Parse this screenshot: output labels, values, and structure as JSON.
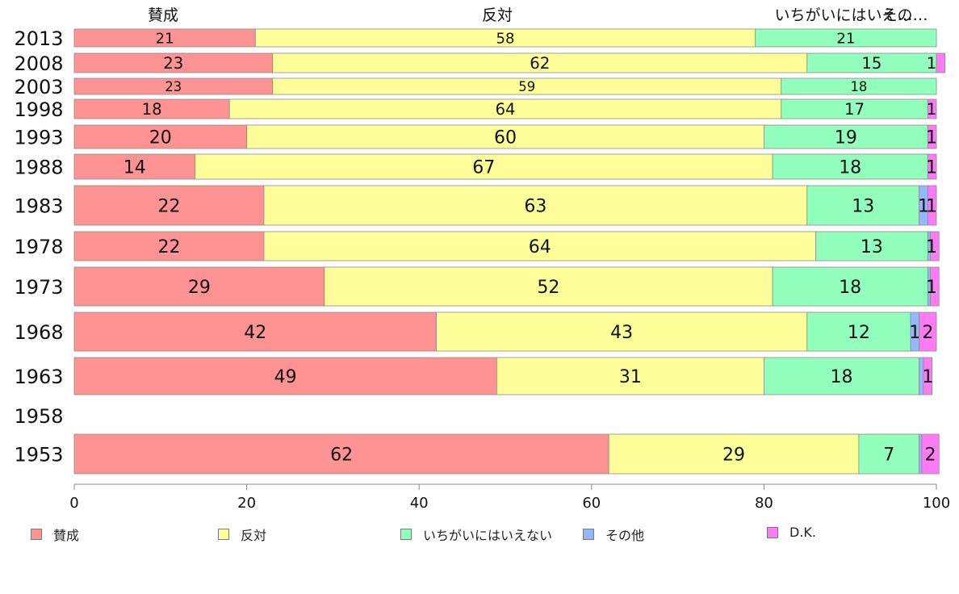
{
  "chart_data": {
    "type": "bar",
    "orientation": "horizontal",
    "stacked": true,
    "categories": [
      "2013",
      "2008",
      "2003",
      "1998",
      "1993",
      "1988",
      "1983",
      "1978",
      "1973",
      "1968",
      "1963",
      "1958",
      "1953"
    ],
    "series": [
      {
        "name": "賛成",
        "color": "#ff9393",
        "values": [
          21,
          23,
          23,
          18,
          20,
          14,
          22,
          22,
          29,
          42,
          49,
          null,
          62
        ]
      },
      {
        "name": "反対",
        "color": "#ffff99",
        "values": [
          58,
          62,
          59,
          64,
          60,
          67,
          63,
          64,
          52,
          43,
          31,
          null,
          29
        ]
      },
      {
        "name": "いちがいにはいえない",
        "color": "#93ffbc",
        "values": [
          21,
          15,
          18,
          17,
          19,
          18,
          13,
          13,
          18,
          12,
          18,
          null,
          7
        ]
      },
      {
        "name": "その他",
        "color": "#93b8ff",
        "values": [
          0,
          0,
          0,
          0,
          0,
          0,
          1,
          0.3,
          0.3,
          1,
          0.5,
          null,
          0.3
        ]
      },
      {
        "name": "D.K.",
        "color": "#ff7af5",
        "values": [
          0,
          1,
          0,
          1,
          1,
          1,
          1,
          1,
          1,
          2,
          1,
          null,
          2
        ]
      }
    ],
    "data_labels": [
      [
        "21",
        "58",
        "21",
        "",
        ""
      ],
      [
        "23",
        "62",
        "15",
        "",
        "1"
      ],
      [
        "23",
        "59",
        "18",
        "",
        ""
      ],
      [
        "18",
        "64",
        "17",
        "",
        "1"
      ],
      [
        "20",
        "60",
        "19",
        "",
        "1"
      ],
      [
        "14",
        "67",
        "18",
        "",
        "1"
      ],
      [
        "22",
        "63",
        "13",
        "1",
        "1"
      ],
      [
        "22",
        "64",
        "13",
        "",
        "1"
      ],
      [
        "29",
        "52",
        "18",
        "",
        "1"
      ],
      [
        "42",
        "43",
        "12",
        "1",
        "2"
      ],
      [
        "49",
        "31",
        "18",
        "",
        "1"
      ],
      [
        "",
        "",
        "",
        "",
        ""
      ],
      [
        "62",
        "29",
        "7",
        "",
        "2"
      ]
    ],
    "top_labels": [
      "賛成",
      "反対",
      "いちがいにはいえ…",
      "その…"
    ],
    "xlim": [
      0,
      100
    ],
    "xticks": [
      "0",
      "20",
      "40",
      "60",
      "80",
      "100"
    ],
    "legend_position": "bottom",
    "grid": false
  }
}
